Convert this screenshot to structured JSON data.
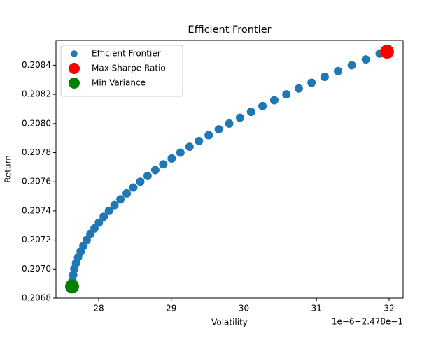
{
  "chart_data": {
    "type": "scatter",
    "title": "Efficient Frontier",
    "x_label": "Volatility",
    "y_label": "Return",
    "x_offset_text": "1e−6+2.478e−1",
    "series": [
      {
        "name": "Efficient Frontier",
        "color": "#1f77b4",
        "size": 6,
        "x": [
          27.634,
          27.638,
          27.649,
          27.665,
          27.688,
          27.716,
          27.751,
          27.79,
          27.835,
          27.886,
          27.942,
          28.003,
          28.069,
          28.141,
          28.218,
          28.3,
          28.386,
          28.477,
          28.573,
          28.674,
          28.78,
          28.89,
          29.006,
          29.126,
          29.251,
          29.381,
          29.515,
          29.654,
          29.798,
          29.946,
          30.099,
          30.257,
          30.419,
          30.585,
          30.756,
          30.932,
          31.112,
          31.297,
          31.486,
          31.679,
          31.87
        ],
        "values": [
          0.20688,
          0.20692,
          0.20696,
          0.207,
          0.20704,
          0.20708,
          0.20712,
          0.20716,
          0.2072,
          0.20724,
          0.20728,
          0.20732,
          0.20736,
          0.2074,
          0.20744,
          0.20748,
          0.20752,
          0.20756,
          0.2076,
          0.20764,
          0.20768,
          0.20772,
          0.20776,
          0.2078,
          0.20784,
          0.20788,
          0.20792,
          0.20796,
          0.208,
          0.20804,
          0.20808,
          0.20812,
          0.20816,
          0.2082,
          0.20824,
          0.20828,
          0.20832,
          0.20836,
          0.2084,
          0.20844,
          0.20848
        ]
      },
      {
        "name": "Max Sharpe Ratio",
        "color": "#ff0000",
        "size": 10,
        "x": [
          31.971
        ],
        "values": [
          0.208493
        ]
      },
      {
        "name": "Min Variance",
        "color": "#008000",
        "size": 10,
        "x": [
          27.634
        ],
        "values": [
          0.20688
        ]
      }
    ],
    "xlim": [
      27.412,
      32.193
    ],
    "ylim": [
      0.2068,
      0.20857
    ],
    "xticks": [
      28,
      29,
      30,
      31,
      32
    ],
    "yticks": [
      0.2068,
      {
        "value": 0.207,
        "label": "0.2070"
      },
      0.2072,
      0.2074,
      0.2076,
      0.2078,
      {
        "value": 0.208,
        "label": "0.2080"
      },
      0.2082,
      0.2084
    ],
    "legend": "upper-left"
  }
}
